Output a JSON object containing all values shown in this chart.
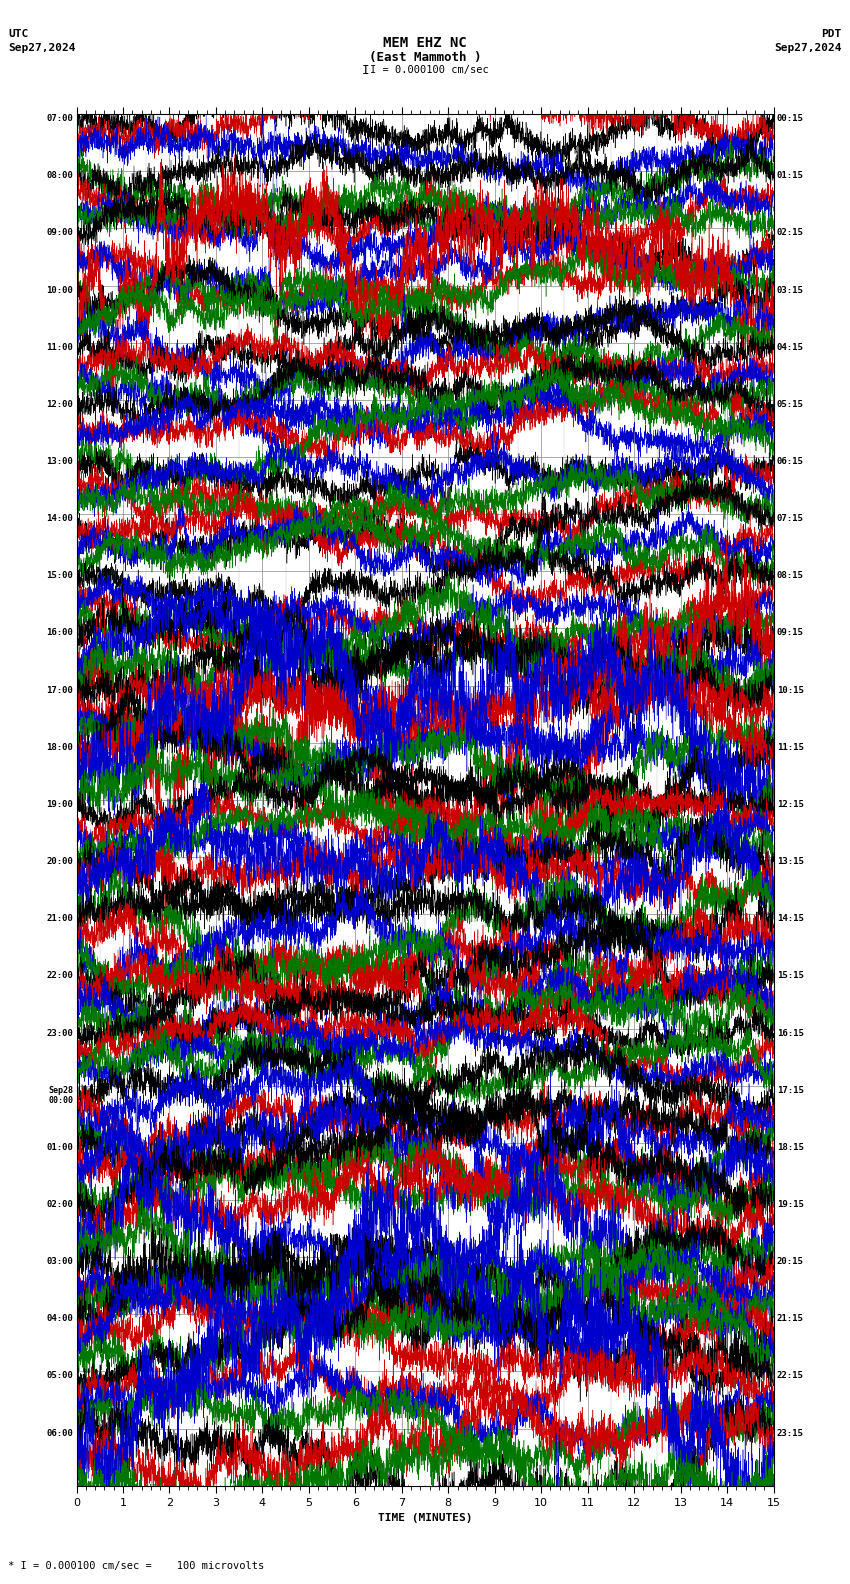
{
  "title_line1": "MEM EHZ NC",
  "title_line2": "(East Mammoth )",
  "scale_text": "I = 0.000100 cm/sec",
  "utc_label": "UTC",
  "pdt_label": "PDT",
  "utc_date": "Sep27,2024",
  "pdt_date": "Sep27,2024",
  "xlabel": "TIME (MINUTES)",
  "footnote": "* I = 0.000100 cm/sec =    100 microvolts",
  "left_times": [
    "07:00",
    "08:00",
    "09:00",
    "10:00",
    "11:00",
    "12:00",
    "13:00",
    "14:00",
    "15:00",
    "16:00",
    "17:00",
    "18:00",
    "19:00",
    "20:00",
    "21:00",
    "22:00",
    "23:00",
    "Sep28\n00:00",
    "01:00",
    "02:00",
    "03:00",
    "04:00",
    "05:00",
    "06:00"
  ],
  "right_times": [
    "00:15",
    "01:15",
    "02:15",
    "03:15",
    "04:15",
    "05:15",
    "06:15",
    "07:15",
    "08:15",
    "09:15",
    "10:15",
    "11:15",
    "12:15",
    "13:15",
    "14:15",
    "15:15",
    "16:15",
    "17:15",
    "18:15",
    "19:15",
    "20:15",
    "21:15",
    "22:15",
    "23:15"
  ],
  "n_rows": 24,
  "traces_per_row": 4,
  "colors": [
    "#000000",
    "#cc0000",
    "#0000cc",
    "#007700"
  ],
  "bg_color": "#ffffff",
  "grid_color": "#888888",
  "font": "monospace",
  "xmin": 0,
  "xmax": 15,
  "fig_width": 8.5,
  "fig_height": 15.84,
  "trace_amplitude": 0.38,
  "base_noise_std": 0.08,
  "noise_points": 4500
}
